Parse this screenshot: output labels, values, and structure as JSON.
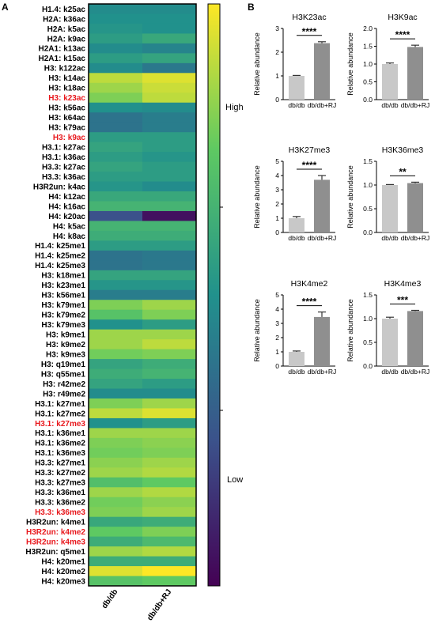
{
  "panel_labels": {
    "a": "A",
    "b": "B"
  },
  "colorbar": {
    "high_label": "High",
    "low_label": "Low"
  },
  "heatmap_colors": {
    "purple": "#440154",
    "blue": "#3b528b",
    "teal": "#21918c",
    "green": "#5ec962",
    "yellow": "#fde725",
    "highlight_text": "#e8171c"
  },
  "chart_data": [
    {
      "type": "heatmap",
      "columns": [
        "db/db",
        "db/db+RJ"
      ],
      "rows": [
        {
          "label": "H1.4: k25ac",
          "values": [
            0.48,
            0.48
          ],
          "highlight": false
        },
        {
          "label": "H2A: k36ac",
          "values": [
            0.5,
            0.5
          ],
          "highlight": false
        },
        {
          "label": "H2A: k5ac",
          "values": [
            0.52,
            0.5
          ],
          "highlight": false
        },
        {
          "label": "H2A: k9ac",
          "values": [
            0.55,
            0.6
          ],
          "highlight": false
        },
        {
          "label": "H2A1: k13ac",
          "values": [
            0.48,
            0.45
          ],
          "highlight": false
        },
        {
          "label": "H2A1: k15ac",
          "values": [
            0.55,
            0.58
          ],
          "highlight": false
        },
        {
          "label": "H3: k122ac",
          "values": [
            0.48,
            0.4
          ],
          "highlight": false
        },
        {
          "label": "H3: k14ac",
          "values": [
            0.9,
            0.95
          ],
          "highlight": false
        },
        {
          "label": "H3: k18ac",
          "values": [
            0.85,
            0.92
          ],
          "highlight": false
        },
        {
          "label": "H3: k23ac",
          "values": [
            0.8,
            0.9
          ],
          "highlight": true
        },
        {
          "label": "H3: k56ac",
          "values": [
            0.5,
            0.48
          ],
          "highlight": false
        },
        {
          "label": "H3: k64ac",
          "values": [
            0.38,
            0.42
          ],
          "highlight": false
        },
        {
          "label": "H3: k79ac",
          "values": [
            0.38,
            0.42
          ],
          "highlight": false
        },
        {
          "label": "H3: k9ac",
          "values": [
            0.55,
            0.55
          ],
          "highlight": true
        },
        {
          "label": "H3.1: k27ac",
          "values": [
            0.58,
            0.55
          ],
          "highlight": false
        },
        {
          "label": "H3.1: k36ac",
          "values": [
            0.55,
            0.52
          ],
          "highlight": false
        },
        {
          "label": "H3.3: k27ac",
          "values": [
            0.58,
            0.55
          ],
          "highlight": false
        },
        {
          "label": "H3.3: k36ac",
          "values": [
            0.55,
            0.55
          ],
          "highlight": false
        },
        {
          "label": "H3R2un: k4ac",
          "values": [
            0.52,
            0.48
          ],
          "highlight": false
        },
        {
          "label": "H4: k12ac",
          "values": [
            0.6,
            0.6
          ],
          "highlight": false
        },
        {
          "label": "H4: k16ac",
          "values": [
            0.65,
            0.65
          ],
          "highlight": false
        },
        {
          "label": "H4: k20ac",
          "values": [
            0.25,
            0.05
          ],
          "highlight": false
        },
        {
          "label": "H4: k5ac",
          "values": [
            0.65,
            0.65
          ],
          "highlight": false
        },
        {
          "label": "H4: k8ac",
          "values": [
            0.62,
            0.62
          ],
          "highlight": false
        },
        {
          "label": "H1.4: k25me1",
          "values": [
            0.55,
            0.55
          ],
          "highlight": false
        },
        {
          "label": "H1.4: k25me2",
          "values": [
            0.38,
            0.4
          ],
          "highlight": false
        },
        {
          "label": "H1.4: k25me3",
          "values": [
            0.38,
            0.4
          ],
          "highlight": false
        },
        {
          "label": "H3: k18me1",
          "values": [
            0.58,
            0.58
          ],
          "highlight": false
        },
        {
          "label": "H3: k23me1",
          "values": [
            0.52,
            0.52
          ],
          "highlight": false
        },
        {
          "label": "H3: k56me1",
          "values": [
            0.42,
            0.42
          ],
          "highlight": false
        },
        {
          "label": "H3: k79me1",
          "values": [
            0.8,
            0.85
          ],
          "highlight": false
        },
        {
          "label": "H3: k79me2",
          "values": [
            0.72,
            0.8
          ],
          "highlight": false
        },
        {
          "label": "H3: k79me3",
          "values": [
            0.5,
            0.55
          ],
          "highlight": false
        },
        {
          "label": "H3: k9me1",
          "values": [
            0.85,
            0.85
          ],
          "highlight": false
        },
        {
          "label": "H3: k9me2",
          "values": [
            0.85,
            0.9
          ],
          "highlight": false
        },
        {
          "label": "H3: k9me3",
          "values": [
            0.78,
            0.8
          ],
          "highlight": false
        },
        {
          "label": "H3: q19me1",
          "values": [
            0.58,
            0.62
          ],
          "highlight": false
        },
        {
          "label": "H3: q55me1",
          "values": [
            0.62,
            0.65
          ],
          "highlight": false
        },
        {
          "label": "H3: r42me2",
          "values": [
            0.58,
            0.55
          ],
          "highlight": false
        },
        {
          "label": "H3: r49me2",
          "values": [
            0.48,
            0.48
          ],
          "highlight": false
        },
        {
          "label": "H3.1: k27me1",
          "values": [
            0.8,
            0.85
          ],
          "highlight": false
        },
        {
          "label": "H3.1: k27me2",
          "values": [
            0.9,
            0.95
          ],
          "highlight": false
        },
        {
          "label": "H3.1: k27me3",
          "values": [
            0.5,
            0.55
          ],
          "highlight": true
        },
        {
          "label": "H3.1: k36me1",
          "values": [
            0.85,
            0.85
          ],
          "highlight": false
        },
        {
          "label": "H3.1: k36me2",
          "values": [
            0.8,
            0.82
          ],
          "highlight": false
        },
        {
          "label": "H3.1: k36me3",
          "values": [
            0.78,
            0.8
          ],
          "highlight": false
        },
        {
          "label": "H3.3: k27me1",
          "values": [
            0.82,
            0.85
          ],
          "highlight": false
        },
        {
          "label": "H3.3: k27me2",
          "values": [
            0.85,
            0.88
          ],
          "highlight": false
        },
        {
          "label": "H3.3: k27me3",
          "values": [
            0.7,
            0.75
          ],
          "highlight": false
        },
        {
          "label": "H3.3: k36me1",
          "values": [
            0.85,
            0.88
          ],
          "highlight": false
        },
        {
          "label": "H3.3: k36me2",
          "values": [
            0.78,
            0.82
          ],
          "highlight": false
        },
        {
          "label": "H3.3: k36me3",
          "values": [
            0.8,
            0.85
          ],
          "highlight": true
        },
        {
          "label": "H3R2un: k4me1",
          "values": [
            0.6,
            0.62
          ],
          "highlight": false
        },
        {
          "label": "H3R2un: k4me2",
          "values": [
            0.75,
            0.8
          ],
          "highlight": true
        },
        {
          "label": "H3R2un: k4me3",
          "values": [
            0.62,
            0.68
          ],
          "highlight": true
        },
        {
          "label": "H3R2un: q5me1",
          "values": [
            0.85,
            0.88
          ],
          "highlight": false
        },
        {
          "label": "H4: k20me1",
          "values": [
            0.62,
            0.62
          ],
          "highlight": false
        },
        {
          "label": "H4: k20me2",
          "values": [
            0.95,
            1.0
          ],
          "highlight": false
        },
        {
          "label": "H4: k20me3",
          "values": [
            0.72,
            0.75
          ],
          "highlight": false
        }
      ]
    },
    {
      "type": "bar",
      "title": "H3K23ac",
      "ylabel": "Relative abundance",
      "categories": [
        "db/db",
        "db/db+RJ"
      ],
      "values": [
        1.0,
        2.38
      ],
      "errors": [
        0.02,
        0.06
      ],
      "ylim": [
        0,
        3
      ],
      "yticks": [
        "0",
        "1",
        "2",
        "3"
      ],
      "significance": "****"
    },
    {
      "type": "bar",
      "title": "H3K9ac",
      "ylabel": "Relative abundance",
      "categories": [
        "db/db",
        "db/db+RJ"
      ],
      "values": [
        1.0,
        1.48
      ],
      "errors": [
        0.03,
        0.05
      ],
      "ylim": [
        0,
        2.0
      ],
      "yticks": [
        "0.0",
        "0.5",
        "1.0",
        "1.5",
        "2.0"
      ],
      "significance": "****"
    },
    {
      "type": "bar",
      "title": "H3K27me3",
      "ylabel": "Relative abundance",
      "categories": [
        "db/db",
        "db/db+RJ"
      ],
      "values": [
        1.0,
        3.7
      ],
      "errors": [
        0.12,
        0.3
      ],
      "ylim": [
        0,
        5
      ],
      "yticks": [
        "0",
        "1",
        "2",
        "3",
        "4",
        "5"
      ],
      "significance": "****"
    },
    {
      "type": "bar",
      "title": "H3K36me3",
      "ylabel": "Relative abundance",
      "categories": [
        "db/db",
        "db/db+RJ"
      ],
      "values": [
        1.0,
        1.04
      ],
      "errors": [
        0.01,
        0.02
      ],
      "ylim": [
        0,
        1.5
      ],
      "yticks": [
        "0.0",
        "0.5",
        "1.0",
        "1.5"
      ],
      "significance": "**"
    },
    {
      "type": "bar",
      "title": "H3K4me2",
      "ylabel": "Relative abundance",
      "categories": [
        "db/db",
        "db/db+RJ"
      ],
      "values": [
        1.0,
        3.45
      ],
      "errors": [
        0.06,
        0.35
      ],
      "ylim": [
        0,
        5
      ],
      "yticks": [
        "0",
        "1",
        "2",
        "3",
        "4",
        "5"
      ],
      "significance": "****"
    },
    {
      "type": "bar",
      "title": "H3K4me3",
      "ylabel": "Relative abundance",
      "categories": [
        "db/db",
        "db/db+RJ"
      ],
      "values": [
        1.0,
        1.16
      ],
      "errors": [
        0.03,
        0.015
      ],
      "ylim": [
        0,
        1.5
      ],
      "yticks": [
        "0.0",
        "0.5",
        "1.0",
        "1.5"
      ],
      "significance": "***"
    }
  ]
}
